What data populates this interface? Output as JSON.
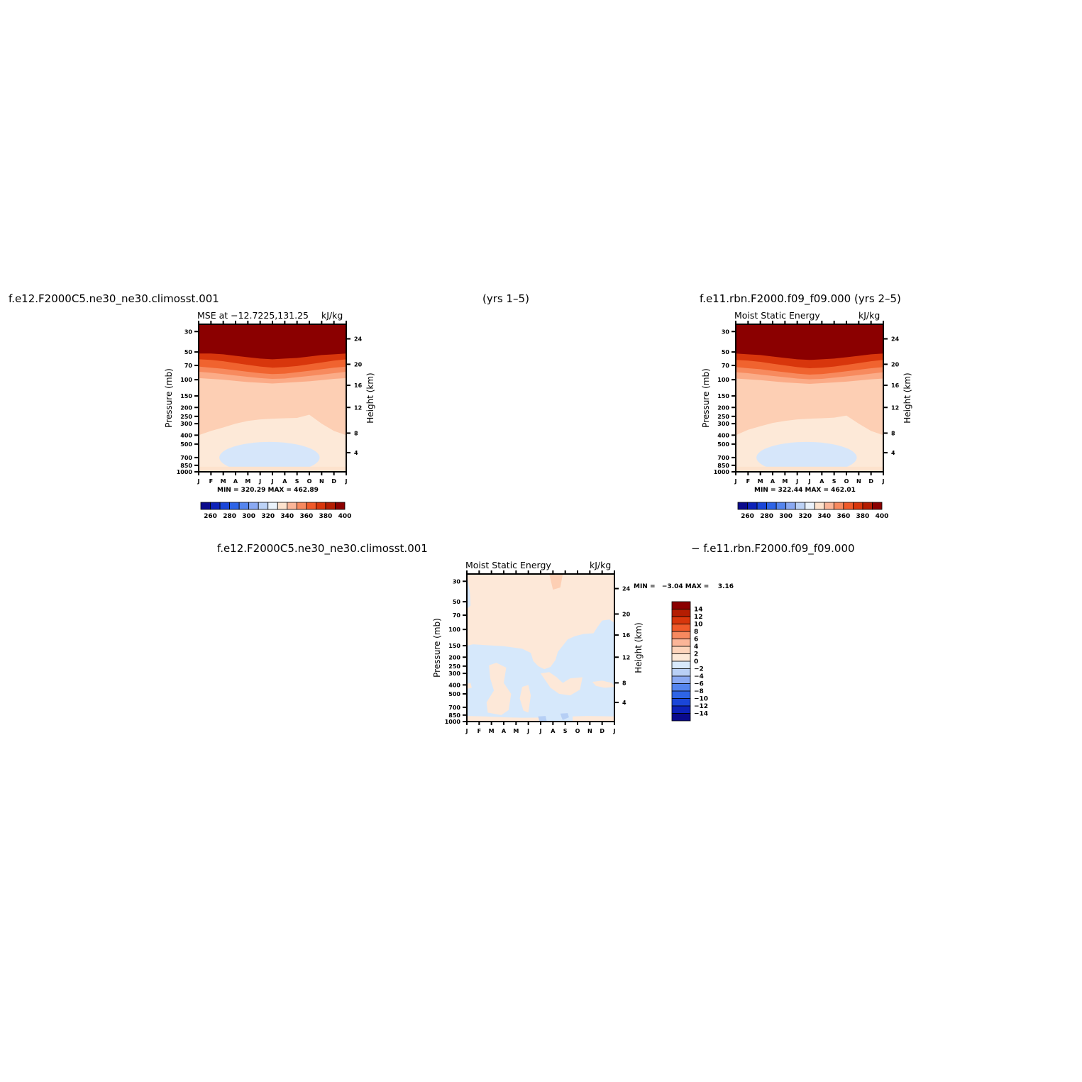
{
  "headers": {
    "top_left": "f.e12.F2000C5.ne30_ne30.climosst.001",
    "top_center": "(yrs 1–5)",
    "top_right": "f.e11.rbn.F2000.f09_f09.000 (yrs 2–5)",
    "bottom_left": "f.e12.F2000C5.ne30_ne30.climosst.001",
    "bottom_right": "− f.e11.rbn.F2000.f09_f09.000"
  },
  "panels": [
    {
      "id": "left",
      "title_left": "MSE at −12.7225,131.25",
      "title_right": "kJ/kg",
      "stats": "MIN = 320.29 MAX = 462.89"
    },
    {
      "id": "right",
      "title_left": "Moist Static Energy",
      "title_right": "kJ/kg",
      "stats": "MIN = 322.44 MAX = 462.01"
    },
    {
      "id": "diff",
      "title_left": "Moist Static Energy",
      "title_right": "kJ/kg",
      "stats": "MIN =   −3.04 MAX =    3.16"
    }
  ],
  "colorbars": {
    "absolute": {
      "colors": [
        "#0a0a8c",
        "#0d22b8",
        "#1a46d8",
        "#2e64e6",
        "#5585ee",
        "#8aa9f2",
        "#bcd2f6",
        "#eaf2fb",
        "#fde2cd",
        "#fbb598",
        "#f7895f",
        "#f05a2a",
        "#d8360c",
        "#b41d02",
        "#8b0000"
      ],
      "labels": [
        "260",
        "280",
        "300",
        "320",
        "340",
        "360",
        "380",
        "400"
      ]
    },
    "difference": {
      "colors": [
        "#8b0000",
        "#b41d02",
        "#d8360c",
        "#f05a2a",
        "#f7895f",
        "#fbb598",
        "#fdd4bb",
        "#fde9d8",
        "#d8e9fb",
        "#b9d0f6",
        "#8aa9f2",
        "#5585ee",
        "#2e64e6",
        "#1a46d8",
        "#0d22b8",
        "#0a0a8c"
      ],
      "labels": [
        "14",
        "12",
        "10",
        "8",
        "6",
        "4",
        "2",
        "0",
        "−2",
        "−4",
        "−6",
        "−8",
        "−10",
        "−12",
        "−14"
      ]
    }
  },
  "chart_data": [
    {
      "type": "heatmap",
      "title": "MSE at −12.7225,131.25",
      "unit": "kJ/kg",
      "x": [
        "J",
        "F",
        "M",
        "A",
        "M",
        "J",
        "J",
        "A",
        "S",
        "O",
        "N",
        "D",
        "J"
      ],
      "xlabel": "",
      "ylabel": "Pressure (mb)",
      "yticks": [
        30,
        50,
        70,
        100,
        150,
        200,
        250,
        300,
        400,
        500,
        700,
        850,
        1000
      ],
      "ylabel_right": "Height (km)",
      "yticks_right": [
        4,
        8,
        12,
        16,
        20,
        24
      ],
      "levels": [
        260,
        270,
        280,
        290,
        300,
        310,
        320,
        330,
        340,
        350,
        360,
        370,
        380,
        390,
        400
      ],
      "min": 320.29,
      "max": 462.89,
      "contours_pressure_by_month": {
        "340": [
          400,
          360,
          330,
          300,
          280,
          270,
          265,
          262,
          260,
          240,
          300,
          360,
          400
        ],
        "350": [
          105,
          108,
          112,
          118,
          125,
          130,
          132,
          130,
          126,
          120,
          115,
          110,
          105
        ],
        "360": [
          96,
          98,
          100,
          103,
          106,
          108,
          110,
          108,
          106,
          104,
          101,
          98,
          96
        ],
        "370": [
          82,
          84,
          87,
          90,
          93,
          96,
          98,
          97,
          94,
          91,
          88,
          85,
          82
        ],
        "380": [
          72,
          74,
          76,
          79,
          82,
          85,
          87,
          86,
          83,
          80,
          77,
          74,
          72
        ],
        "390": [
          60,
          61,
          63,
          66,
          69,
          72,
          74,
          73,
          71,
          68,
          65,
          62,
          60
        ],
        "400": [
          52,
          52,
          53,
          55,
          57,
          59,
          60,
          59,
          58,
          56,
          54,
          53,
          52
        ]
      }
    },
    {
      "type": "heatmap",
      "title": "Moist Static Energy",
      "unit": "kJ/kg",
      "x": [
        "J",
        "F",
        "M",
        "A",
        "M",
        "J",
        "J",
        "A",
        "S",
        "O",
        "N",
        "D",
        "J"
      ],
      "xlabel": "",
      "ylabel": "Pressure (mb)",
      "yticks": [
        30,
        50,
        70,
        100,
        150,
        200,
        250,
        300,
        400,
        500,
        700,
        850,
        1000
      ],
      "ylabel_right": "Height (km)",
      "yticks_right": [
        4,
        8,
        12,
        16,
        20,
        24
      ],
      "levels": [
        260,
        270,
        280,
        290,
        300,
        310,
        320,
        330,
        340,
        350,
        360,
        370,
        380,
        390,
        400
      ],
      "min": 322.44,
      "max": 462.01,
      "contours_pressure_by_month": {
        "340": [
          400,
          350,
          320,
          295,
          280,
          270,
          265,
          262,
          258,
          245,
          300,
          360,
          400
        ],
        "350": [
          106,
          110,
          114,
          120,
          126,
          131,
          133,
          131,
          127,
          121,
          116,
          111,
          106
        ],
        "360": [
          97,
          99,
          101,
          104,
          107,
          109,
          111,
          109,
          107,
          105,
          102,
          99,
          97
        ],
        "370": [
          83,
          85,
          88,
          91,
          94,
          97,
          99,
          98,
          95,
          92,
          89,
          86,
          83
        ],
        "380": [
          73,
          75,
          77,
          80,
          83,
          86,
          88,
          87,
          84,
          81,
          78,
          75,
          73
        ],
        "390": [
          61,
          62,
          64,
          67,
          70,
          73,
          75,
          74,
          72,
          69,
          66,
          63,
          61
        ],
        "400": [
          52,
          53,
          54,
          56,
          58,
          60,
          61,
          60,
          59,
          57,
          55,
          53,
          52
        ]
      }
    },
    {
      "type": "heatmap",
      "title": "Moist Static Energy",
      "unit": "kJ/kg",
      "x": [
        "J",
        "F",
        "M",
        "A",
        "M",
        "J",
        "J",
        "A",
        "S",
        "O",
        "N",
        "D",
        "J"
      ],
      "xlabel": "",
      "ylabel": "Pressure (mb)",
      "yticks": [
        30,
        50,
        70,
        100,
        150,
        200,
        250,
        300,
        400,
        500,
        700,
        850,
        1000
      ],
      "ylabel_right": "Height (km)",
      "yticks_right": [
        4,
        8,
        12,
        16,
        20,
        24
      ],
      "levels": [
        -14,
        -12,
        -10,
        -8,
        -6,
        -4,
        -2,
        0,
        2,
        4,
        6,
        8,
        10,
        12,
        14
      ],
      "min": -3.04,
      "max": 3.16
    }
  ]
}
